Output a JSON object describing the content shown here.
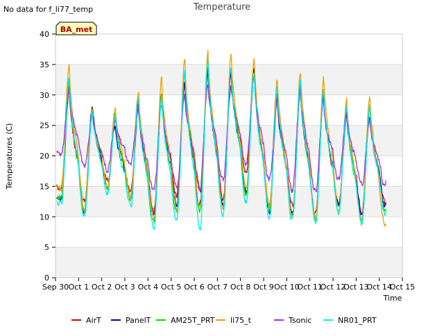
{
  "header": {
    "no_data_note": "No data for f_li77_temp"
  },
  "site_badge": {
    "label": "BA_met"
  },
  "chart_data": {
    "type": "line",
    "title": "Temperature",
    "xlabel": "Time",
    "ylabel": "Temperatures (C)",
    "xlim": [
      0,
      15
    ],
    "ylim": [
      0,
      40
    ],
    "x_ticks": [
      {
        "pos": 0,
        "label": "Sep 30"
      },
      {
        "pos": 1,
        "label": "Oct 1"
      },
      {
        "pos": 2,
        "label": "Oct 2"
      },
      {
        "pos": 3,
        "label": "Oct 3"
      },
      {
        "pos": 4,
        "label": "Oct 4"
      },
      {
        "pos": 5,
        "label": "Oct 5"
      },
      {
        "pos": 6,
        "label": "Oct 6"
      },
      {
        "pos": 7,
        "label": "Oct 7"
      },
      {
        "pos": 8,
        "label": "Oct 8"
      },
      {
        "pos": 9,
        "label": "Oct 9"
      },
      {
        "pos": 10,
        "label": "Oct 10"
      },
      {
        "pos": 11,
        "label": "Oct 11"
      },
      {
        "pos": 12,
        "label": "Oct 12"
      },
      {
        "pos": 13,
        "label": "Oct 13"
      },
      {
        "pos": 14,
        "label": "Oct 14"
      },
      {
        "pos": 15,
        "label": "Oct 15"
      }
    ],
    "y_ticks": [
      0,
      5,
      10,
      15,
      20,
      25,
      30,
      35,
      40
    ],
    "grid": true,
    "band_shading": true,
    "legend_position": "bottom",
    "x_unit": "days since Sep 30",
    "series": [
      {
        "name": "AirT",
        "color": "#dd0000",
        "min": [
          15.0,
          12.0,
          15.5,
          14.0,
          11.0,
          13.5,
          14.0,
          13.0,
          17.0,
          12.0,
          11.5,
          10.5,
          12.0,
          11.0,
          12.0
        ],
        "max": [
          31.0,
          27.0,
          26.0,
          29.0,
          30.0,
          32.0,
          34.0,
          33.0,
          33.0,
          30.0,
          30.5,
          30.0,
          27.0,
          27.0
        ]
      },
      {
        "name": "PanelT",
        "color": "#0000aa",
        "min": [
          13.0,
          11.0,
          15.0,
          13.0,
          10.0,
          12.0,
          12.0,
          12.0,
          14.0,
          11.0,
          10.5,
          10.0,
          11.5,
          10.0,
          11.5
        ],
        "max": [
          32.0,
          28.5,
          25.5,
          28.5,
          30.0,
          32.5,
          34.5,
          34.0,
          34.0,
          30.5,
          31.0,
          30.5,
          27.5,
          27.5
        ]
      },
      {
        "name": "AM25T_PRT",
        "color": "#00dd00",
        "min": [
          13.0,
          11.0,
          15.0,
          13.0,
          9.0,
          11.0,
          11.0,
          11.0,
          14.0,
          11.0,
          10.0,
          9.5,
          11.0,
          9.5,
          11.0
        ],
        "max": [
          32.5,
          28.0,
          27.0,
          30.5,
          30.5,
          34.0,
          35.5,
          35.0,
          34.5,
          31.5,
          32.0,
          31.0,
          28.5,
          28.0
        ]
      },
      {
        "name": "li75_t",
        "color": "#f0a000",
        "min": [
          14.5,
          11.5,
          15.0,
          13.5,
          9.5,
          11.0,
          11.0,
          11.5,
          14.5,
          11.5,
          10.0,
          10.0,
          11.5,
          9.5,
          8.5
        ],
        "max": [
          35.0,
          28.0,
          28.0,
          31.0,
          32.5,
          36.0,
          37.0,
          36.5,
          36.5,
          32.5,
          34.0,
          33.0,
          29.5,
          30.5
        ]
      },
      {
        "name": "Tsonic",
        "color": "#9933dd",
        "min": [
          20.0,
          18.0,
          18.0,
          18.0,
          14.0,
          14.5,
          15.0,
          16.0,
          19.0,
          16.0,
          14.5,
          14.0,
          16.0,
          15.0,
          15.0
        ],
        "max": [
          31.0,
          26.5,
          26.0,
          28.0,
          29.0,
          30.0,
          32.5,
          32.0,
          33.0,
          29.0,
          31.0,
          29.0,
          27.0,
          26.0
        ]
      },
      {
        "name": "NR01_PRT",
        "color": "#00eeee",
        "min": [
          12.0,
          10.0,
          14.0,
          11.5,
          8.0,
          9.5,
          8.5,
          10.5,
          12.5,
          10.0,
          9.5,
          9.0,
          10.5,
          9.0,
          10.0
        ],
        "max": [
          33.0,
          27.0,
          26.5,
          29.5,
          30.0,
          34.0,
          35.5,
          35.0,
          34.0,
          31.0,
          32.0,
          31.0,
          28.0,
          28.0
        ]
      }
    ]
  }
}
